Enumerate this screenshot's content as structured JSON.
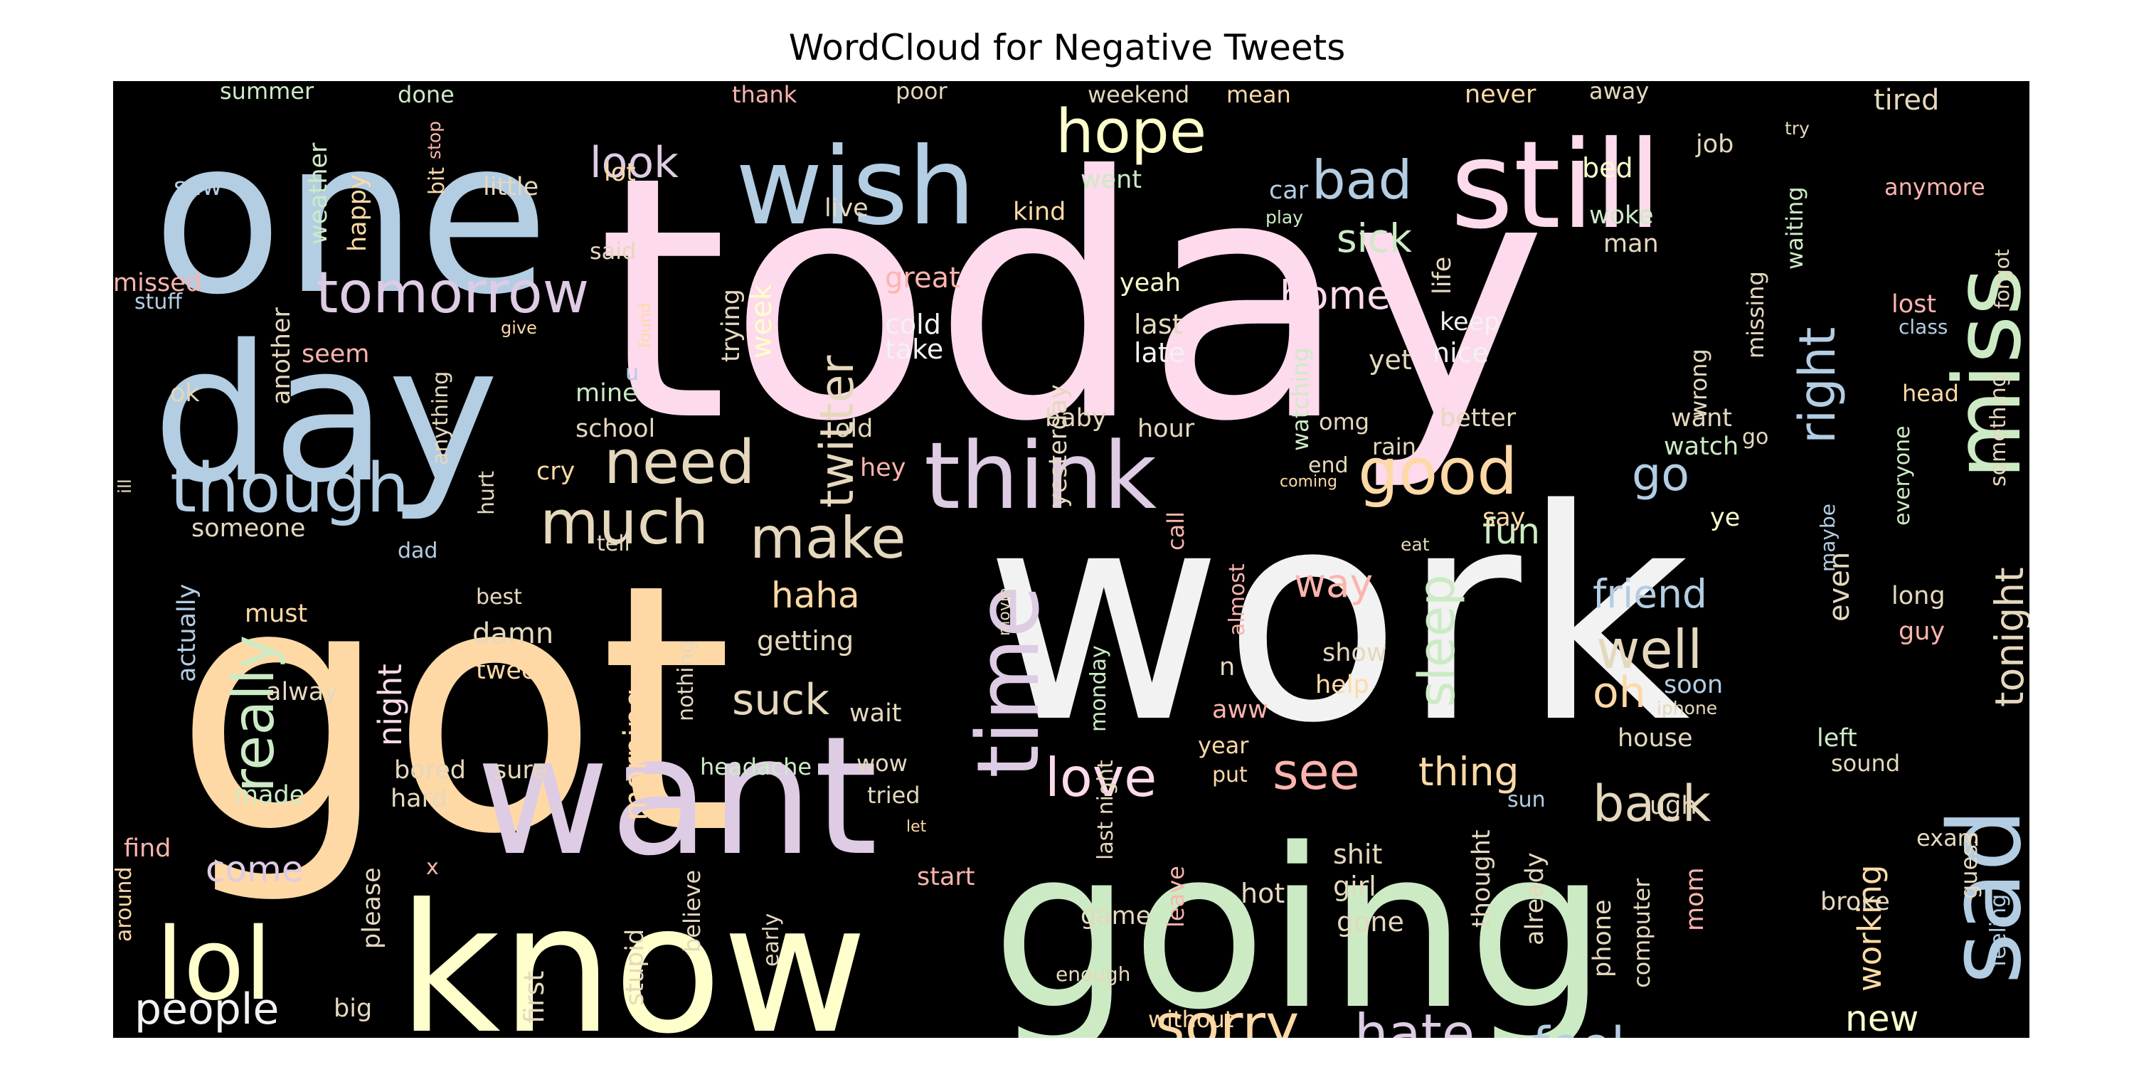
{
  "title": "WordCloud for Negative Tweets",
  "background_color": "#000000",
  "palette": [
    "#fbb4ae",
    "#b3cde3",
    "#ccebc5",
    "#decbe4",
    "#fed9a6",
    "#ffffcc",
    "#e5d8bd",
    "#fddaec",
    "#f2f2f2"
  ],
  "words": [
    {
      "text": "today",
      "color": "#fddaec"
    },
    {
      "text": "work",
      "color": "#f2f2f2"
    },
    {
      "text": "got",
      "color": "#fed9a6"
    },
    {
      "text": "going",
      "color": "#ccebc5"
    },
    {
      "text": "one",
      "color": "#b3cde3"
    },
    {
      "text": "day",
      "color": "#b3cde3"
    },
    {
      "text": "know",
      "color": "#ffffcc"
    },
    {
      "text": "want",
      "color": "#decbe4"
    },
    {
      "text": "still",
      "color": "#fddaec"
    },
    {
      "text": "wish",
      "color": "#b3cde3"
    },
    {
      "text": "miss",
      "color": "#ccebc5"
    },
    {
      "text": "think",
      "color": "#decbe4"
    },
    {
      "text": "time",
      "color": "#decbe4"
    },
    {
      "text": "lol",
      "color": "#ffffcc"
    },
    {
      "text": "sad",
      "color": "#b3cde3"
    },
    {
      "text": "though",
      "color": "#b3cde3"
    },
    {
      "text": "tomorrow",
      "color": "#decbe4"
    },
    {
      "text": "hope",
      "color": "#ffffcc"
    },
    {
      "text": "bad",
      "color": "#b3cde3"
    },
    {
      "text": "need",
      "color": "#e5d8bd"
    },
    {
      "text": "much",
      "color": "#e5d8bd"
    },
    {
      "text": "make",
      "color": "#e5d8bd"
    },
    {
      "text": "good",
      "color": "#fed9a6"
    },
    {
      "text": "really",
      "color": "#ccebc5"
    },
    {
      "text": "sorry",
      "color": "#fed9a6"
    },
    {
      "text": "hate",
      "color": "#decbe4"
    },
    {
      "text": "love",
      "color": "#fddaec"
    },
    {
      "text": "back",
      "color": "#e5d8bd"
    },
    {
      "text": "feel",
      "color": "#b3cde3"
    },
    {
      "text": "right",
      "color": "#b3cde3"
    },
    {
      "text": "twitter",
      "color": "#e5d8bd"
    },
    {
      "text": "well",
      "color": "#e5d8bd"
    },
    {
      "text": "sleep",
      "color": "#ccebc5"
    },
    {
      "text": "see",
      "color": "#fbb4ae"
    },
    {
      "text": "tonight",
      "color": "#e5d8bd"
    },
    {
      "text": "go",
      "color": "#b3cde3"
    },
    {
      "text": "oh",
      "color": "#fed9a6"
    },
    {
      "text": "suck",
      "color": "#e5d8bd"
    },
    {
      "text": "look",
      "color": "#decbe4"
    },
    {
      "text": "sick",
      "color": "#ccebc5"
    },
    {
      "text": "home",
      "color": "#fddaec"
    },
    {
      "text": "haha",
      "color": "#fed9a6"
    },
    {
      "text": "thing",
      "color": "#fed9a6"
    },
    {
      "text": "friend",
      "color": "#b3cde3"
    },
    {
      "text": "people",
      "color": "#f2f2f2"
    },
    {
      "text": "come",
      "color": "#decbe4"
    },
    {
      "text": "fun",
      "color": "#ccebc5"
    },
    {
      "text": "way",
      "color": "#fbb4ae"
    },
    {
      "text": "new",
      "color": "#ffffcc"
    },
    {
      "text": "working",
      "color": "#fed9a6"
    },
    {
      "text": "night",
      "color": "#fddaec"
    },
    {
      "text": "morning",
      "color": "#fed9a6"
    },
    {
      "text": "week",
      "color": "#ffffcc"
    },
    {
      "text": "even",
      "color": "#e5d8bd"
    },
    {
      "text": "summer",
      "color": "#ccebc5"
    },
    {
      "text": "done",
      "color": "#ccebc5"
    },
    {
      "text": "thank",
      "color": "#fbb4ae"
    },
    {
      "text": "poor",
      "color": "#e5d8bd"
    },
    {
      "text": "weekend",
      "color": "#e5d8bd"
    },
    {
      "text": "mean",
      "color": "#fed9a6"
    },
    {
      "text": "never",
      "color": "#fed9a6"
    },
    {
      "text": "away",
      "color": "#e5d8bd"
    },
    {
      "text": "tired",
      "color": "#e5d8bd"
    },
    {
      "text": "job",
      "color": "#e5d8bd"
    },
    {
      "text": "try",
      "color": "#e5d8bd"
    },
    {
      "text": "bed",
      "color": "#ffffcc"
    },
    {
      "text": "saw",
      "color": "#b3cde3"
    },
    {
      "text": "weather",
      "color": "#ccebc5"
    },
    {
      "text": "stop",
      "color": "#fbb4ae"
    },
    {
      "text": "bit",
      "color": "#fed9a6"
    },
    {
      "text": "little",
      "color": "#e5d8bd"
    },
    {
      "text": "lot",
      "color": "#fed9a6"
    },
    {
      "text": "went",
      "color": "#ccebc5"
    },
    {
      "text": "car",
      "color": "#b3cde3"
    },
    {
      "text": "play",
      "color": "#ccebc5"
    },
    {
      "text": "woke",
      "color": "#ccebc5"
    },
    {
      "text": "man",
      "color": "#e5d8bd"
    },
    {
      "text": "anymore",
      "color": "#fbb4ae"
    },
    {
      "text": "happy",
      "color": "#fed9a6"
    },
    {
      "text": "live",
      "color": "#e5d8bd"
    },
    {
      "text": "kind",
      "color": "#fed9a6"
    },
    {
      "text": "said",
      "color": "#e5d8bd"
    },
    {
      "text": "missed",
      "color": "#fbb4ae"
    },
    {
      "text": "stuff",
      "color": "#b3cde3"
    },
    {
      "text": "another",
      "color": "#e5d8bd"
    },
    {
      "text": "great",
      "color": "#fbb4ae"
    },
    {
      "text": "yeah",
      "color": "#ffffcc"
    },
    {
      "text": "trying",
      "color": "#e5d8bd"
    },
    {
      "text": "yesterday",
      "color": "#e5d8bd"
    },
    {
      "text": "life",
      "color": "#e5d8bd"
    },
    {
      "text": "waiting",
      "color": "#ccebc5"
    },
    {
      "text": "forgot",
      "color": "#e5d8bd"
    },
    {
      "text": "lost",
      "color": "#fbb4ae"
    },
    {
      "text": "class",
      "color": "#b3cde3"
    },
    {
      "text": "give",
      "color": "#fed9a6"
    },
    {
      "text": "found",
      "color": "#fed9a6"
    },
    {
      "text": "cold",
      "color": "#f2f2f2"
    },
    {
      "text": "last",
      "color": "#e5d8bd"
    },
    {
      "text": "keep",
      "color": "#f2f2f2"
    },
    {
      "text": "missing",
      "color": "#e5d8bd"
    },
    {
      "text": "wrong",
      "color": "#e5d8bd"
    },
    {
      "text": "take",
      "color": "#f2f2f2"
    },
    {
      "text": "late",
      "color": "#f2f2f2"
    },
    {
      "text": "nice",
      "color": "#f2f2f2"
    },
    {
      "text": "yet",
      "color": "#e5d8bd"
    },
    {
      "text": "seem",
      "color": "#fbb4ae"
    },
    {
      "text": "anything",
      "color": "#e5d8bd"
    },
    {
      "text": "u",
      "color": "#b3cde3"
    },
    {
      "text": "ok",
      "color": "#e5d8bd"
    },
    {
      "text": "mine",
      "color": "#ccebc5"
    },
    {
      "text": "school",
      "color": "#e5d8bd"
    },
    {
      "text": "old",
      "color": "#e5d8bd"
    },
    {
      "text": "baby",
      "color": "#e5d8bd"
    },
    {
      "text": "hour",
      "color": "#e5d8bd"
    },
    {
      "text": "watching",
      "color": "#ccebc5"
    },
    {
      "text": "omg",
      "color": "#e5d8bd"
    },
    {
      "text": "rain",
      "color": "#e5d8bd"
    },
    {
      "text": "end",
      "color": "#e5d8bd"
    },
    {
      "text": "better",
      "color": "#e5d8bd"
    },
    {
      "text": "want",
      "color": "#e5d8bd"
    },
    {
      "text": "go",
      "color": "#e5d8bd"
    },
    {
      "text": "watch",
      "color": "#ccebc5"
    },
    {
      "text": "everyone",
      "color": "#ccebc5"
    },
    {
      "text": "something",
      "color": "#e5d8bd"
    },
    {
      "text": "head",
      "color": "#fed9a6"
    },
    {
      "text": "ill",
      "color": "#e5d8bd"
    },
    {
      "text": "hurt",
      "color": "#e5d8bd"
    },
    {
      "text": "cry",
      "color": "#fed9a6"
    },
    {
      "text": "hey",
      "color": "#fbb4ae"
    },
    {
      "text": "call",
      "color": "#fbb4ae"
    },
    {
      "text": "coming",
      "color": "#fed9a6"
    },
    {
      "text": "say",
      "color": "#fed9a6"
    },
    {
      "text": "ye",
      "color": "#ffffcc"
    },
    {
      "text": "maybe",
      "color": "#b3cde3"
    },
    {
      "text": "someone",
      "color": "#e5d8bd"
    },
    {
      "text": "dad",
      "color": "#b3cde3"
    },
    {
      "text": "tell",
      "color": "#e5d8bd"
    },
    {
      "text": "eat",
      "color": "#e5d8bd"
    },
    {
      "text": "actually",
      "color": "#b3cde3"
    },
    {
      "text": "best",
      "color": "#e5d8bd"
    },
    {
      "text": "must",
      "color": "#fed9a6"
    },
    {
      "text": "damn",
      "color": "#e5d8bd"
    },
    {
      "text": "tweet",
      "color": "#fed9a6"
    },
    {
      "text": "getting",
      "color": "#e5d8bd"
    },
    {
      "text": "nothing",
      "color": "#e5d8bd"
    },
    {
      "text": "movie",
      "color": "#e5d8bd"
    },
    {
      "text": "almost",
      "color": "#fbb4ae"
    },
    {
      "text": "show",
      "color": "#e5d8bd"
    },
    {
      "text": "help",
      "color": "#fed9a6"
    },
    {
      "text": "long",
      "color": "#e5d8bd"
    },
    {
      "text": "guy",
      "color": "#fbb4ae"
    },
    {
      "text": "alway",
      "color": "#e5d8bd"
    },
    {
      "text": "wait",
      "color": "#e5d8bd"
    },
    {
      "text": "monday",
      "color": "#ccebc5"
    },
    {
      "text": "n",
      "color": "#e5d8bd"
    },
    {
      "text": "aww",
      "color": "#fbb4ae"
    },
    {
      "text": "soon",
      "color": "#b3cde3"
    },
    {
      "text": "iphone",
      "color": "#e5d8bd"
    },
    {
      "text": "house",
      "color": "#e5d8bd"
    },
    {
      "text": "left",
      "color": "#ccebc5"
    },
    {
      "text": "sound",
      "color": "#e5d8bd"
    },
    {
      "text": "headache",
      "color": "#ccebc5"
    },
    {
      "text": "wow",
      "color": "#e5d8bd"
    },
    {
      "text": "year",
      "color": "#fed9a6"
    },
    {
      "text": "put",
      "color": "#fed9a6"
    },
    {
      "text": "last night",
      "color": "#e5d8bd"
    },
    {
      "text": "bored",
      "color": "#e5d8bd"
    },
    {
      "text": "sure",
      "color": "#e5d8bd"
    },
    {
      "text": "hard",
      "color": "#e5d8bd"
    },
    {
      "text": "made",
      "color": "#ccebc5"
    },
    {
      "text": "tried",
      "color": "#e5d8bd"
    },
    {
      "text": "let",
      "color": "#fed9a6"
    },
    {
      "text": "sun",
      "color": "#b3cde3"
    },
    {
      "text": "ugh",
      "color": "#e5d8bd"
    },
    {
      "text": "guess",
      "color": "#e5d8bd"
    },
    {
      "text": "feeling",
      "color": "#b3cde3"
    },
    {
      "text": "exam",
      "color": "#e5d8bd"
    },
    {
      "text": "find",
      "color": "#fbb4ae"
    },
    {
      "text": "x",
      "color": "#fbb4ae"
    },
    {
      "text": "please",
      "color": "#e5d8bd"
    },
    {
      "text": "start",
      "color": "#fbb4ae"
    },
    {
      "text": "shit",
      "color": "#e5d8bd"
    },
    {
      "text": "girl",
      "color": "#e5d8bd"
    },
    {
      "text": "hot",
      "color": "#e5d8bd"
    },
    {
      "text": "gone",
      "color": "#e5d8bd"
    },
    {
      "text": "leave",
      "color": "#fbb4ae"
    },
    {
      "text": "game",
      "color": "#e5d8bd"
    },
    {
      "text": "thought",
      "color": "#e5d8bd"
    },
    {
      "text": "already",
      "color": "#e5d8bd"
    },
    {
      "text": "phone",
      "color": "#e5d8bd"
    },
    {
      "text": "computer",
      "color": "#e5d8bd"
    },
    {
      "text": "mom",
      "color": "#fbb4ae"
    },
    {
      "text": "broke",
      "color": "#e5d8bd"
    },
    {
      "text": "around",
      "color": "#fed9a6"
    },
    {
      "text": "first",
      "color": "#e5d8bd"
    },
    {
      "text": "stupid",
      "color": "#e5d8bd"
    },
    {
      "text": "believe",
      "color": "#e5d8bd"
    },
    {
      "text": "early",
      "color": "#e5d8bd"
    },
    {
      "text": "enough",
      "color": "#e5d8bd"
    },
    {
      "text": "without",
      "color": "#fed9a6"
    },
    {
      "text": "big",
      "color": "#e5d8bd"
    }
  ]
}
